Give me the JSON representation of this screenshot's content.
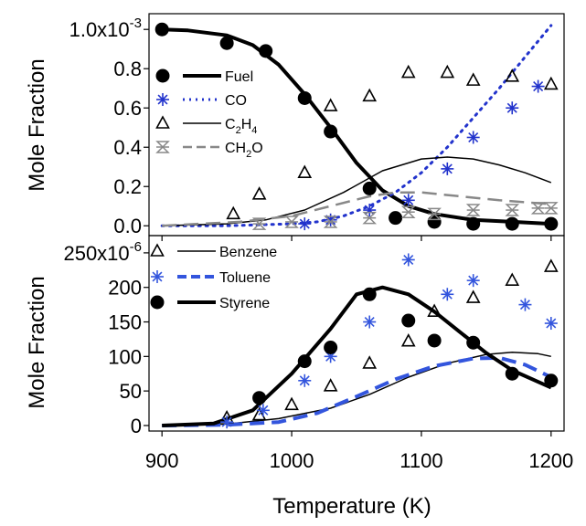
{
  "chart_data": [
    {
      "type": "line",
      "xlabel": "Temperature (K)",
      "ylabel": "Mole Fraction",
      "xlim": [
        890,
        1210
      ],
      "ylim": [
        -5e-05,
        0.00108
      ],
      "xticks": [
        "900",
        "1000",
        "1100",
        "1200"
      ],
      "yticks": [
        {
          "v": 0.001,
          "label": "1.0x10",
          "exp": "-3"
        },
        {
          "v": 0.0008,
          "label": "0.8"
        },
        {
          "v": 0.0006,
          "label": "0.6"
        },
        {
          "v": 0.0004,
          "label": "0.4"
        },
        {
          "v": 0.0002,
          "label": "0.2"
        },
        {
          "v": 0.0,
          "label": "0.0"
        }
      ],
      "legend_position": "top-left",
      "series": [
        {
          "name": "Fuel",
          "sub": "",
          "tail": "",
          "color": "#000000",
          "line_style": "solid",
          "line_width": 4,
          "marker": "circle",
          "points": [
            [
              900,
              0.001
            ],
            [
              950,
              0.00093
            ],
            [
              980,
              0.00089
            ],
            [
              1010,
              0.00065
            ],
            [
              1030,
              0.00048
            ],
            [
              1060,
              0.00019
            ],
            [
              1080,
              4e-05
            ],
            [
              1110,
              2e-05
            ],
            [
              1140,
              1e-05
            ],
            [
              1170,
              1e-05
            ],
            [
              1200,
              1e-05
            ]
          ],
          "curve": [
            [
              900,
              0.001
            ],
            [
              920,
              0.000995
            ],
            [
              950,
              0.00097
            ],
            [
              970,
              0.00092
            ],
            [
              990,
              0.00082
            ],
            [
              1010,
              0.00067
            ],
            [
              1030,
              0.0005
            ],
            [
              1050,
              0.00032
            ],
            [
              1070,
              0.00018
            ],
            [
              1090,
              0.0001
            ],
            [
              1110,
              6e-05
            ],
            [
              1140,
              3e-05
            ],
            [
              1170,
              2e-05
            ],
            [
              1200,
              1e-05
            ]
          ]
        },
        {
          "name": "CO",
          "sub": "",
          "tail": "",
          "color": "#2233cc",
          "line_style": "dotted",
          "line_width": 3,
          "marker": "asterisk",
          "points": [
            [
              1010,
              1e-05
            ],
            [
              1030,
              3e-05
            ],
            [
              1060,
              8e-05
            ],
            [
              1090,
              0.00013
            ],
            [
              1120,
              0.00029
            ],
            [
              1140,
              0.00045
            ],
            [
              1170,
              0.0006
            ],
            [
              1190,
              0.00071
            ]
          ],
          "curve": [
            [
              900,
              0
            ],
            [
              950,
              0
            ],
            [
              1000,
              1e-05
            ],
            [
              1020,
              2e-05
            ],
            [
              1040,
              5e-05
            ],
            [
              1060,
              0.0001
            ],
            [
              1080,
              0.00017
            ],
            [
              1100,
              0.00027
            ],
            [
              1120,
              0.0004
            ],
            [
              1140,
              0.00055
            ],
            [
              1160,
              0.0007
            ],
            [
              1180,
              0.00086
            ],
            [
              1200,
              0.00102
            ]
          ]
        },
        {
          "name": "C",
          "sub": "2",
          "tail": "H4",
          "color": "#000000",
          "line_style": "solid",
          "line_width": 1.5,
          "marker": "triangle",
          "points": [
            [
              955,
              6e-05
            ],
            [
              975,
              0.00016
            ],
            [
              1010,
              0.00027
            ],
            [
              1030,
              0.00061
            ],
            [
              1060,
              0.00066
            ],
            [
              1090,
              0.00078
            ],
            [
              1120,
              0.00078
            ],
            [
              1140,
              0.00074
            ],
            [
              1170,
              0.00076
            ],
            [
              1200,
              0.00072
            ]
          ],
          "curve": [
            [
              900,
              0
            ],
            [
              950,
              1e-05
            ],
            [
              980,
              3e-05
            ],
            [
              1010,
              8e-05
            ],
            [
              1040,
              0.00017
            ],
            [
              1070,
              0.00028
            ],
            [
              1100,
              0.00034
            ],
            [
              1120,
              0.00035
            ],
            [
              1140,
              0.00034
            ],
            [
              1160,
              0.00031
            ],
            [
              1180,
              0.00027
            ],
            [
              1200,
              0.00022
            ]
          ]
        },
        {
          "name": "CH",
          "sub": "2",
          "tail": "O",
          "color": "#888888",
          "line_style": "dashed",
          "line_width": 2.5,
          "marker": "hourglass",
          "points": [
            [
              975,
              1e-05
            ],
            [
              1000,
              2e-05
            ],
            [
              1030,
              2e-05
            ],
            [
              1060,
              4e-05
            ],
            [
              1090,
              7e-05
            ],
            [
              1110,
              6e-05
            ],
            [
              1140,
              8e-05
            ],
            [
              1170,
              8e-05
            ],
            [
              1190,
              9e-05
            ],
            [
              1200,
              9e-05
            ]
          ],
          "curve": [
            [
              900,
              0
            ],
            [
              960,
              2e-05
            ],
            [
              1000,
              5e-05
            ],
            [
              1030,
              0.0001
            ],
            [
              1060,
              0.00015
            ],
            [
              1080,
              0.00017
            ],
            [
              1100,
              0.00017
            ],
            [
              1130,
              0.00015
            ],
            [
              1160,
              0.00013
            ],
            [
              1200,
              0.00011
            ]
          ]
        }
      ]
    },
    {
      "type": "line",
      "xlabel": "Temperature (K)",
      "ylabel": "Mole Fraction",
      "xlim": [
        890,
        1210
      ],
      "ylim": [
        -8e-06,
        0.000275
      ],
      "xticks": [
        "900",
        "1000",
        "1100",
        "1200"
      ],
      "yticks": [
        {
          "v": 0.00025,
          "label": "250x10",
          "exp": "-6"
        },
        {
          "v": 0.0002,
          "label": "200"
        },
        {
          "v": 0.00015,
          "label": "150"
        },
        {
          "v": 0.0001,
          "label": "100"
        },
        {
          "v": 5e-05,
          "label": "50"
        },
        {
          "v": 0.0,
          "label": "0"
        }
      ],
      "legend_position": "top-left",
      "series": [
        {
          "name": "Benzene",
          "sub": "",
          "tail": "",
          "color": "#000000",
          "line_style": "solid",
          "line_width": 1.5,
          "marker": "triangle",
          "points": [
            [
              950,
              1.1e-05
            ],
            [
              975,
              1.5e-05
            ],
            [
              1000,
              3e-05
            ],
            [
              1030,
              5.7e-05
            ],
            [
              1060,
              9e-05
            ],
            [
              1090,
              0.000122
            ],
            [
              1110,
              0.000165
            ],
            [
              1140,
              0.000185
            ],
            [
              1170,
              0.00021
            ],
            [
              1200,
              0.00023
            ]
          ],
          "curve": [
            [
              900,
              0
            ],
            [
              950,
              2e-06
            ],
            [
              990,
              1e-05
            ],
            [
              1030,
              2.5e-05
            ],
            [
              1060,
              4.5e-05
            ],
            [
              1090,
              7e-05
            ],
            [
              1120,
              9e-05
            ],
            [
              1150,
              0.000103
            ],
            [
              1170,
              0.000106
            ],
            [
              1190,
              0.000104
            ],
            [
              1200,
              0.0001
            ]
          ]
        },
        {
          "name": "Toluene",
          "sub": "",
          "tail": "",
          "color": "#3355dd",
          "line_style": "dashed",
          "line_width": 4,
          "marker": "asterisk",
          "points": [
            [
              950,
              5e-06
            ],
            [
              978,
              2.2e-05
            ],
            [
              1010,
              6.5e-05
            ],
            [
              1030,
              0.0001
            ],
            [
              1060,
              0.00015
            ],
            [
              1090,
              0.00024
            ],
            [
              1120,
              0.00019
            ],
            [
              1140,
              0.00021
            ],
            [
              1180,
              0.000175
            ],
            [
              1200,
              0.000148
            ]
          ],
          "curve": [
            [
              900,
              0
            ],
            [
              950,
              1e-06
            ],
            [
              990,
              5e-06
            ],
            [
              1020,
              1.8e-05
            ],
            [
              1050,
              4.2e-05
            ],
            [
              1080,
              6.7e-05
            ],
            [
              1110,
              8.6e-05
            ],
            [
              1140,
              9.7e-05
            ],
            [
              1160,
              9.8e-05
            ],
            [
              1180,
              8.8e-05
            ],
            [
              1200,
              7e-05
            ]
          ]
        },
        {
          "name": "Styrene",
          "sub": "",
          "tail": "",
          "color": "#000000",
          "line_style": "solid",
          "line_width": 4,
          "marker": "circle",
          "points": [
            [
              975,
              4e-05
            ],
            [
              1010,
              9.3e-05
            ],
            [
              1030,
              0.000113
            ],
            [
              1060,
              0.00019
            ],
            [
              1090,
              0.000152
            ],
            [
              1110,
              0.000123
            ],
            [
              1140,
              0.00012
            ],
            [
              1170,
              7.5e-05
            ],
            [
              1200,
              6.5e-05
            ]
          ],
          "curve": [
            [
              900,
              0
            ],
            [
              940,
              3e-06
            ],
            [
              970,
              2.2e-05
            ],
            [
              1000,
              7.5e-05
            ],
            [
              1030,
              0.00014
            ],
            [
              1050,
              0.00019
            ],
            [
              1070,
              0.0002
            ],
            [
              1090,
              0.00019
            ],
            [
              1110,
              0.000165
            ],
            [
              1130,
              0.000135
            ],
            [
              1150,
              0.000105
            ],
            [
              1170,
              8e-05
            ],
            [
              1200,
              5.5e-05
            ]
          ]
        }
      ]
    }
  ]
}
